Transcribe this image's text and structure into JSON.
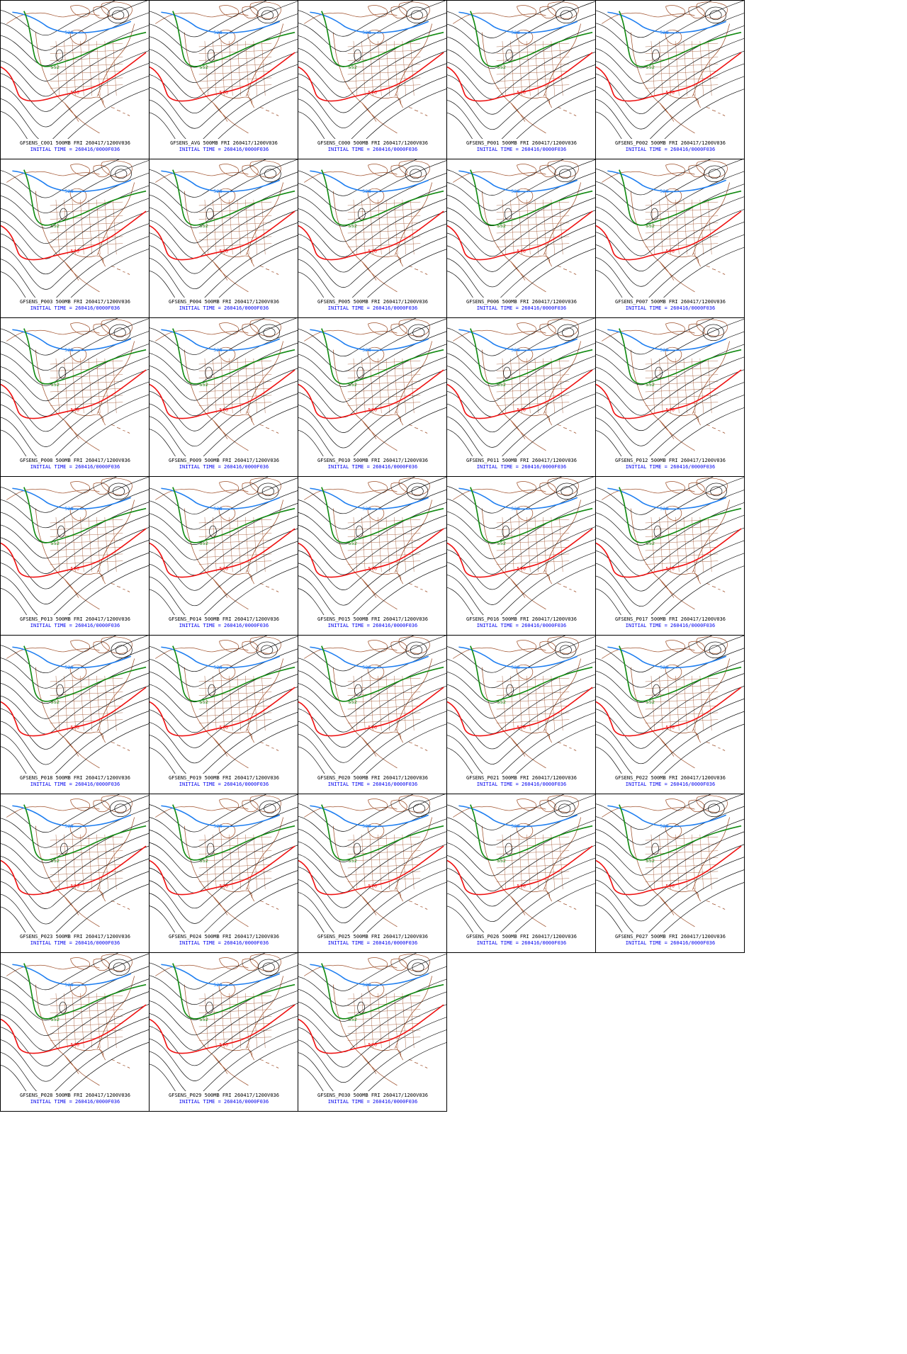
{
  "colors": {
    "contour": "#000000",
    "coast": "#a0522d",
    "c528": "#1e7ef0",
    "c552": "#128a12",
    "c576": "#ee1111",
    "caption_line1": "#000000",
    "caption_line2": "#0000ee"
  },
  "contour_labels": {
    "c528": "528",
    "c552": "552",
    "c576": "576"
  },
  "panels": [
    {
      "line1": "GFSENS_C001 500MB FRI 260417/1200V036",
      "line2": "INITIAL TIME = 260416/0000F036"
    },
    {
      "line1": "GFSENS_AVG 500MB FRI 260417/1200V036",
      "line2": "INITIAL TIME = 260416/0000F036"
    },
    {
      "line1": "GFSENS_C000 500MB FRI 260417/1200V036",
      "line2": "INITIAL TIME = 260416/0000F036"
    },
    {
      "line1": "GFSENS_P001 500MB FRI 260417/1200V036",
      "line2": "INITIAL TIME = 260416/0000F036"
    },
    {
      "line1": "GFSENS_P002 500MB FRI 260417/1200V036",
      "line2": "INITIAL TIME = 260416/0000F036"
    },
    {
      "line1": "GFSENS_P003 500MB FRI 260417/1200V036",
      "line2": "INITIAL TIME = 260416/0000F036"
    },
    {
      "line1": "GFSENS_P004 500MB FRI 260417/1200V036",
      "line2": "INITIAL TIME = 260416/0000F036"
    },
    {
      "line1": "GFSENS_P005 500MB FRI 260417/1200V036",
      "line2": "INITIAL TIME = 260416/0000F036"
    },
    {
      "line1": "GFSENS_P006 500MB FRI 260417/1200V036",
      "line2": "INITIAL TIME = 260416/0000F036"
    },
    {
      "line1": "GFSENS_P007 500MB FRI 260417/1200V036",
      "line2": "INITIAL TIME = 260416/0000F036"
    },
    {
      "line1": "GFSENS_P008 500MB FRI 260417/1200V036",
      "line2": "INITIAL TIME = 260416/0000F036"
    },
    {
      "line1": "GFSENS_P009 500MB FRI 260417/1200V036",
      "line2": "INITIAL TIME = 260416/0000F036"
    },
    {
      "line1": "GFSENS_P010 500MB FRI 260417/1200V036",
      "line2": "INITIAL TIME = 260416/0000F036"
    },
    {
      "line1": "GFSENS_P011 500MB FRI 260417/1200V036",
      "line2": "INITIAL TIME = 260416/0000F036"
    },
    {
      "line1": "GFSENS_P012 500MB FRI 260417/1200V036",
      "line2": "INITIAL TIME = 260416/0000F036"
    },
    {
      "line1": "GFSENS_P013 500MB FRI 260417/1200V036",
      "line2": "INITIAL TIME = 260416/0000F036"
    },
    {
      "line1": "GFSENS_P014 500MB FRI 260417/1200V036",
      "line2": "INITIAL TIME = 260416/0000F036"
    },
    {
      "line1": "GFSENS_P015 500MB FRI 260417/1200V036",
      "line2": "INITIAL TIME = 260416/0000F036"
    },
    {
      "line1": "GFSENS_P016 500MB FRI 260417/1200V036",
      "line2": "INITIAL TIME = 260416/0000F036"
    },
    {
      "line1": "GFSENS_P017 500MB FRI 260417/1200V036",
      "line2": "INITIAL TIME = 260416/0000F036"
    },
    {
      "line1": "GFSENS_P018 500MB FRI 260417/1200V036",
      "line2": "INITIAL TIME = 260416/0000F036"
    },
    {
      "line1": "GFSENS_P019 500MB FRI 260417/1200V036",
      "line2": "INITIAL TIME = 260416/0000F036"
    },
    {
      "line1": "GFSENS_P020 500MB FRI 260417/1200V036",
      "line2": "INITIAL TIME = 260416/0000F036"
    },
    {
      "line1": "GFSENS_P021 500MB FRI 260417/1200V036",
      "line2": "INITIAL TIME = 260416/0000F036"
    },
    {
      "line1": "GFSENS_P022 500MB FRI 260417/1200V036",
      "line2": "INITIAL TIME = 260416/0000F036"
    },
    {
      "line1": "GFSENS_P023 500MB FRI 260417/1200V036",
      "line2": "INITIAL TIME = 260416/0000F036"
    },
    {
      "line1": "GFSENS_P024 500MB FRI 260417/1200V036",
      "line2": "INITIAL TIME = 260416/0000F036"
    },
    {
      "line1": "GFSENS_P025 500MB FRI 260417/1200V036",
      "line2": "INITIAL TIME = 260416/0000F036"
    },
    {
      "line1": "GFSENS_P026 500MB FRI 260417/1200V036",
      "line2": "INITIAL TIME = 260416/0000F036"
    },
    {
      "line1": "GFSENS_P027 500MB FRI 260417/1200V036",
      "line2": "INITIAL TIME = 260416/0000F036"
    },
    {
      "line1": "GFSENS_P028 500MB FRI 260417/1200V036",
      "line2": "INITIAL TIME = 260416/0000F036"
    },
    {
      "line1": "GFSENS_P029 500MB FRI 260417/1200V036",
      "line2": "INITIAL TIME = 260416/0000F036"
    },
    {
      "line1": "GFSENS_P030 500MB FRI 260417/1200V036",
      "line2": "INITIAL TIME = 260416/0000F036"
    }
  ]
}
